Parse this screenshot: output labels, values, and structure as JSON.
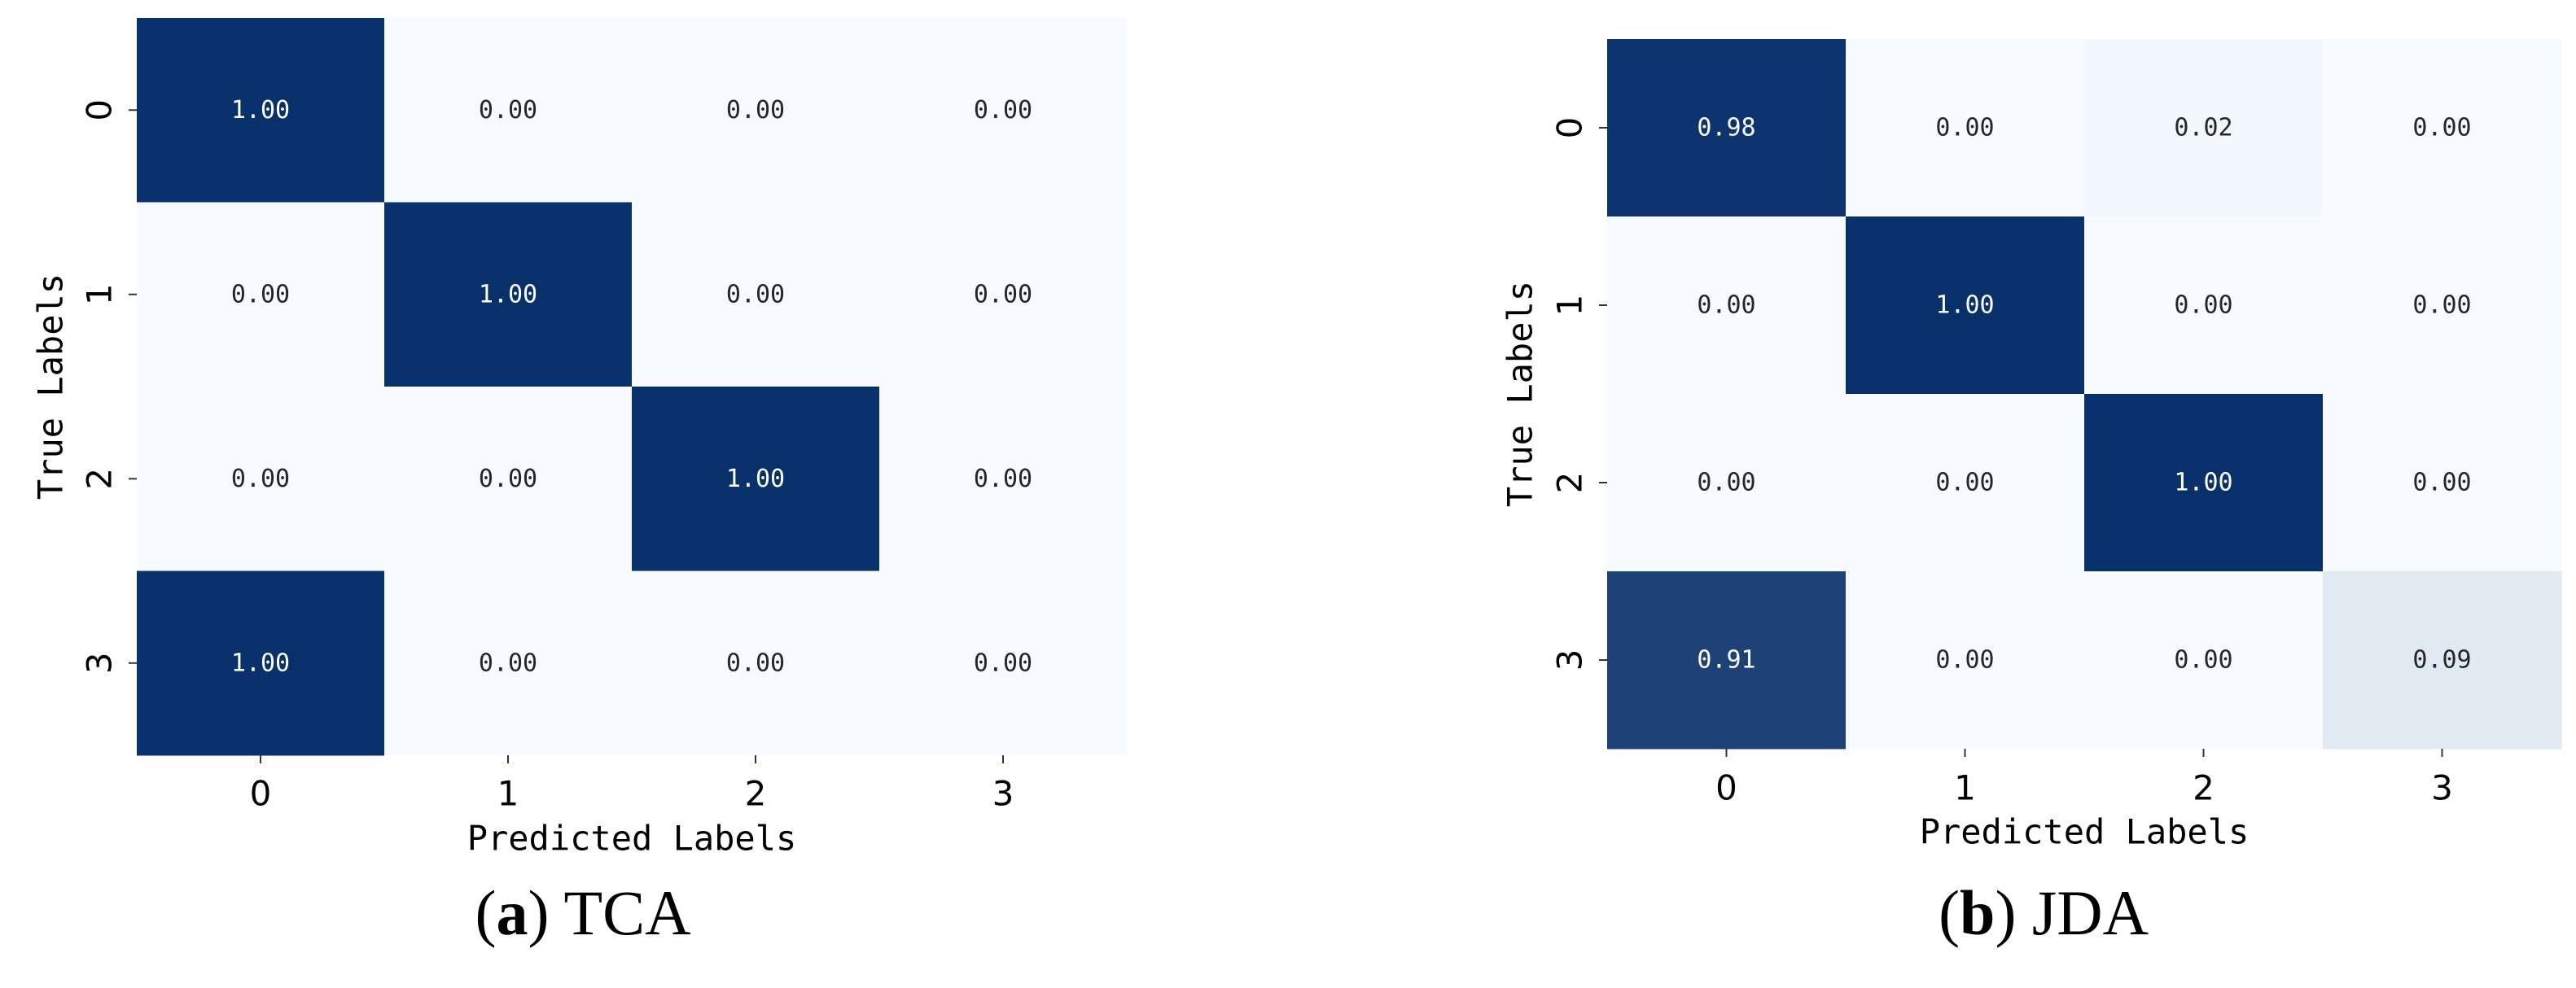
{
  "chart_data": [
    {
      "type": "heatmap",
      "subfigure_label": "a",
      "caption": "TCA",
      "xlabel": "Predicted Labels",
      "ylabel": "True Labels",
      "x_categories": [
        "0",
        "1",
        "2",
        "3"
      ],
      "y_categories": [
        "0",
        "1",
        "2",
        "3"
      ],
      "values": [
        [
          1.0,
          0.0,
          0.0,
          0.0
        ],
        [
          0.0,
          1.0,
          0.0,
          0.0
        ],
        [
          0.0,
          0.0,
          1.0,
          0.0
        ],
        [
          1.0,
          0.0,
          0.0,
          0.0
        ]
      ],
      "value_range": [
        0,
        1
      ],
      "colormap": "Blues",
      "color_low": "#f7fbff",
      "color_high": "#08306b",
      "colorbar": false
    },
    {
      "type": "heatmap",
      "subfigure_label": "b",
      "caption": "JDA",
      "xlabel": "Predicted Labels",
      "ylabel": "True Labels",
      "x_categories": [
        "0",
        "1",
        "2",
        "3"
      ],
      "y_categories": [
        "0",
        "1",
        "2",
        "3"
      ],
      "values": [
        [
          0.98,
          0.0,
          0.02,
          0.0
        ],
        [
          0.0,
          1.0,
          0.0,
          0.0
        ],
        [
          0.0,
          0.0,
          1.0,
          0.0
        ],
        [
          0.91,
          0.0,
          0.0,
          0.09
        ]
      ],
      "value_range": [
        0,
        1
      ],
      "colormap": "Blues",
      "color_low": "#f7fbff",
      "color_high": "#08306b",
      "colorbar": false
    }
  ]
}
